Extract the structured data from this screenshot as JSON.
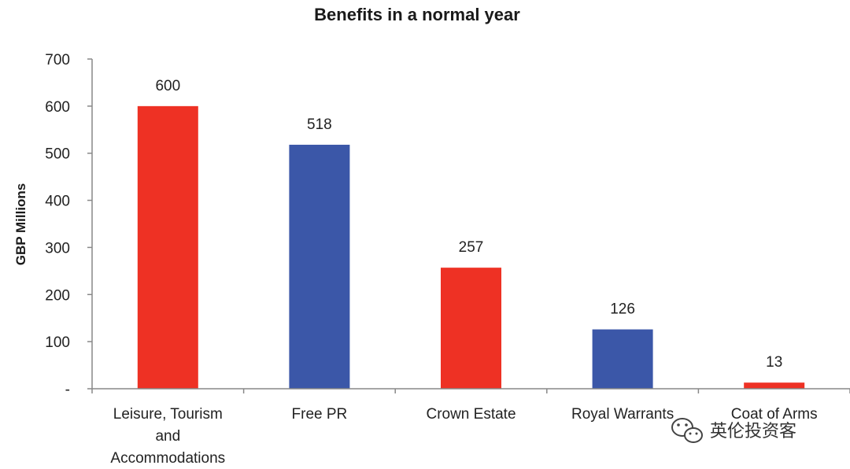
{
  "chart_data": {
    "type": "bar",
    "title": "Benefits in a normal year",
    "xlabel": "",
    "ylabel": "GBP Millions",
    "ylim": [
      0,
      700
    ],
    "yticks": [
      "-",
      "100",
      "200",
      "300",
      "400",
      "500",
      "600",
      "700"
    ],
    "categories": [
      [
        "Leisure, Tourism",
        "and",
        "Accommodations"
      ],
      [
        "Free PR"
      ],
      [
        "Crown Estate"
      ],
      [
        "Royal Warrants"
      ],
      [
        "Coat of Arms"
      ]
    ],
    "values": [
      600,
      518,
      257,
      126,
      13
    ],
    "bar_colors": [
      "#ee3124",
      "#3b57a8",
      "#ee3124",
      "#3b57a8",
      "#ee3124"
    ],
    "grid": false,
    "legend": "none"
  },
  "watermark": {
    "text": "英伦投资客",
    "icon": "wechat-logo-icon"
  }
}
